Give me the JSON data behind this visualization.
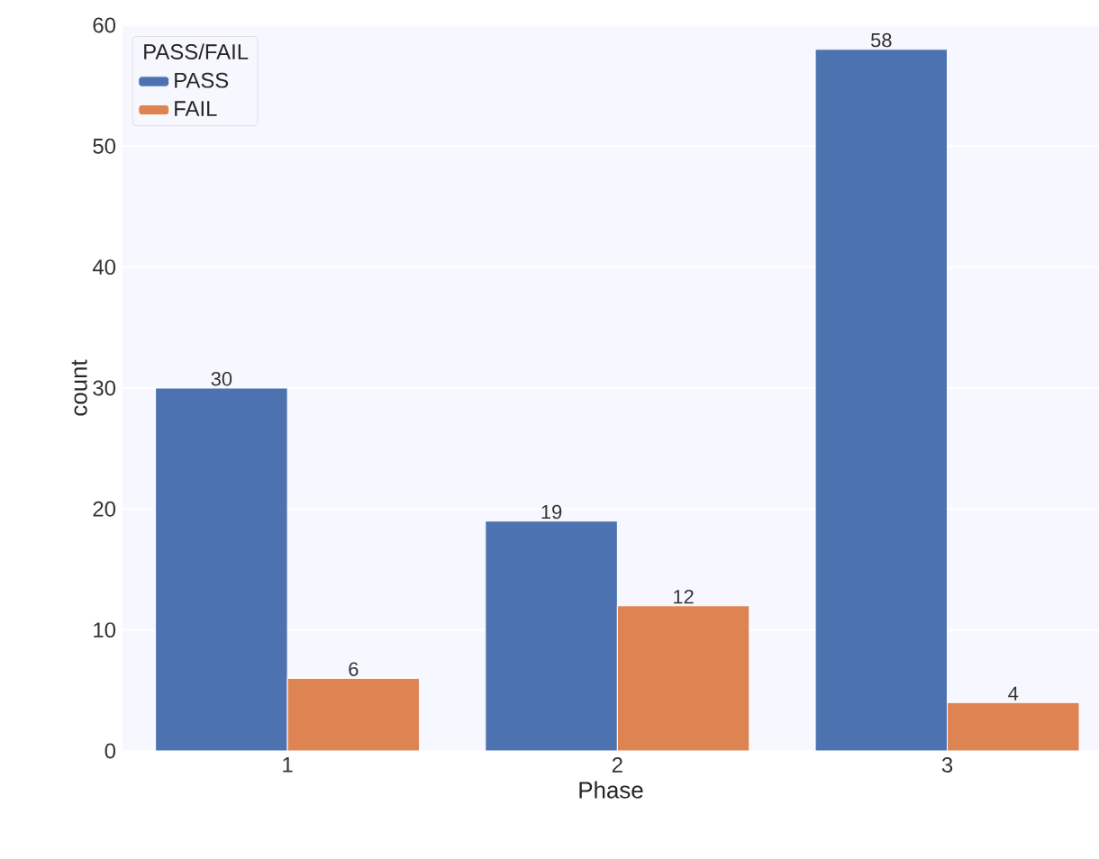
{
  "chart_data": {
    "type": "bar",
    "xlabel": "Phase",
    "ylabel": "count",
    "legend_title": "PASS/FAIL",
    "categories": [
      "1",
      "2",
      "3"
    ],
    "series": [
      {
        "name": "PASS",
        "color": "#4c72b0",
        "values": [
          30,
          19,
          58
        ]
      },
      {
        "name": "FAIL",
        "color": "#dd8452",
        "values": [
          6,
          12,
          4
        ]
      }
    ],
    "ylim": [
      0,
      60
    ],
    "yticks": [
      0,
      10,
      20,
      30,
      40,
      50,
      60
    ],
    "grid": "y",
    "legend": "top left",
    "data_labels": true
  }
}
